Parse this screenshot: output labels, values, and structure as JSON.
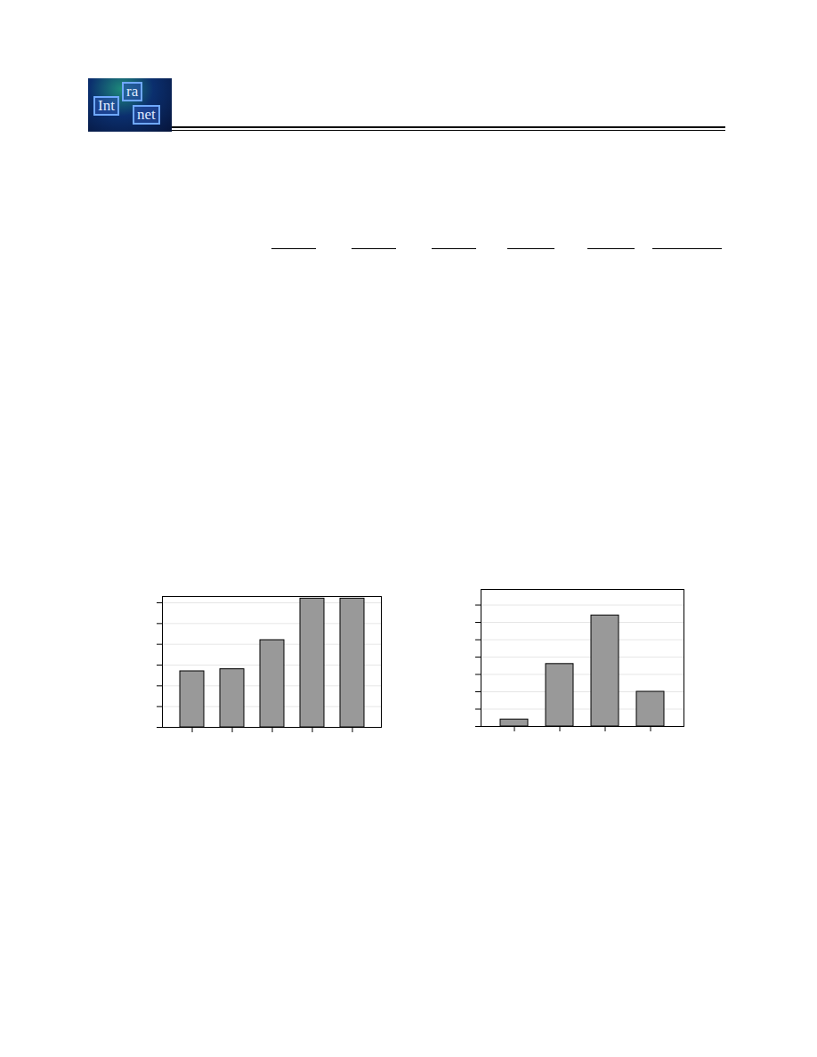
{
  "header": {
    "logo": [
      "Int",
      "ra",
      "net"
    ]
  },
  "chart_data": [
    {
      "type": "bar",
      "categories": [
        null,
        null,
        null,
        null,
        null
      ],
      "values": [
        2.7,
        2.8,
        4.2,
        6.2,
        6.2
      ],
      "color": "#999999",
      "ylim": [
        0,
        6.3
      ],
      "yticks": [
        0,
        1,
        2,
        3,
        4,
        5,
        6
      ],
      "grid": true,
      "tick_labels": false
    },
    {
      "type": "bar",
      "categories": [
        null,
        null,
        null,
        null
      ],
      "values": [
        0.4,
        3.6,
        6.4,
        2.0
      ],
      "color": "#999999",
      "ylim": [
        0,
        7.9
      ],
      "yticks": [
        0,
        1,
        2,
        3,
        4,
        5,
        6,
        7
      ],
      "grid": true,
      "tick_labels": false
    }
  ]
}
